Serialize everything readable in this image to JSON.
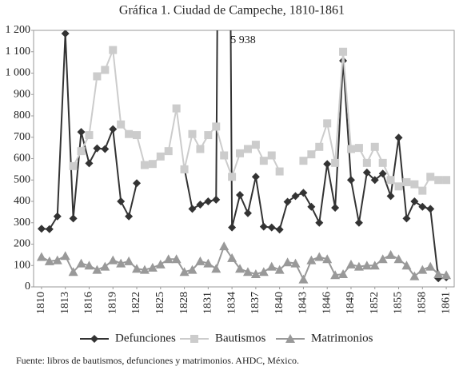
{
  "chart_data": {
    "type": "line",
    "title": "Gráfica 1. Ciudad de Campeche, 1810-1861",
    "source": "Fuente: libros de bautismos, defunciones y matrimonios. AHDC, México.",
    "x": [
      1810,
      1811,
      1812,
      1813,
      1814,
      1815,
      1816,
      1817,
      1818,
      1819,
      1820,
      1821,
      1822,
      1823,
      1824,
      1825,
      1826,
      1827,
      1828,
      1829,
      1830,
      1831,
      1832,
      1833,
      1834,
      1835,
      1836,
      1837,
      1838,
      1839,
      1840,
      1841,
      1842,
      1843,
      1844,
      1845,
      1846,
      1847,
      1848,
      1849,
      1850,
      1851,
      1852,
      1853,
      1854,
      1855,
      1856,
      1857,
      1858,
      1859,
      1860,
      1861
    ],
    "xlim": [
      1809,
      1862
    ],
    "xticks": [
      1810,
      1813,
      1816,
      1819,
      1822,
      1825,
      1828,
      1831,
      1834,
      1837,
      1840,
      1843,
      1846,
      1849,
      1852,
      1855,
      1858,
      1861
    ],
    "ylim": [
      0,
      1200
    ],
    "yticks": [
      0,
      100,
      200,
      300,
      400,
      500,
      600,
      700,
      800,
      900,
      {
        "value": 1000,
        "label": "1 000"
      },
      {
        "value": 1100,
        "label": "1 100"
      },
      {
        "value": 1200,
        "label": "1 200"
      }
    ],
    "legend": "bottom",
    "series": [
      {
        "name": "Defunciones",
        "color": "#333333",
        "marker": "diamond",
        "values": [
          272,
          270,
          330,
          1185,
          320,
          725,
          578,
          648,
          645,
          738,
          400,
          330,
          485,
          null,
          null,
          null,
          null,
          null,
          555,
          365,
          385,
          400,
          408,
          5938,
          278,
          430,
          345,
          515,
          282,
          278,
          268,
          398,
          425,
          440,
          375,
          300,
          575,
          370,
          1058,
          500,
          300,
          535,
          500,
          530,
          425,
          698,
          320,
          400,
          375,
          365,
          40,
          45
        ],
        "value_labels": [
          null,
          null,
          null,
          null,
          null,
          null,
          null,
          null,
          null,
          null,
          null,
          null,
          null,
          null,
          null,
          null,
          null,
          null,
          null,
          null,
          null,
          null,
          null,
          "5 938",
          null,
          null,
          null,
          null,
          null,
          null,
          null,
          null,
          null,
          null,
          null,
          null,
          null,
          null,
          null,
          null,
          null,
          null,
          null,
          null,
          null,
          null,
          null,
          null,
          null,
          null,
          null,
          null
        ]
      },
      {
        "name": "Bautismos",
        "color": "#cccccc",
        "marker": "square",
        "values": [
          null,
          null,
          null,
          null,
          565,
          635,
          710,
          985,
          1015,
          1108,
          760,
          715,
          710,
          570,
          575,
          610,
          635,
          835,
          550,
          715,
          645,
          710,
          750,
          615,
          515,
          625,
          645,
          665,
          590,
          615,
          540,
          null,
          null,
          590,
          620,
          655,
          765,
          580,
          1100,
          645,
          650,
          580,
          655,
          580,
          500,
          470,
          490,
          480,
          450,
          515,
          500,
          500
        ]
      },
      {
        "name": "Matrimonios",
        "color": "#999999",
        "marker": "triangle",
        "values": [
          140,
          120,
          125,
          145,
          70,
          110,
          100,
          80,
          95,
          125,
          110,
          120,
          85,
          80,
          90,
          105,
          130,
          130,
          70,
          80,
          120,
          110,
          85,
          190,
          135,
          85,
          70,
          60,
          70,
          95,
          80,
          115,
          110,
          35,
          125,
          140,
          130,
          55,
          60,
          105,
          95,
          100,
          100,
          130,
          150,
          130,
          100,
          50,
          80,
          95,
          60,
          55
        ]
      }
    ]
  }
}
